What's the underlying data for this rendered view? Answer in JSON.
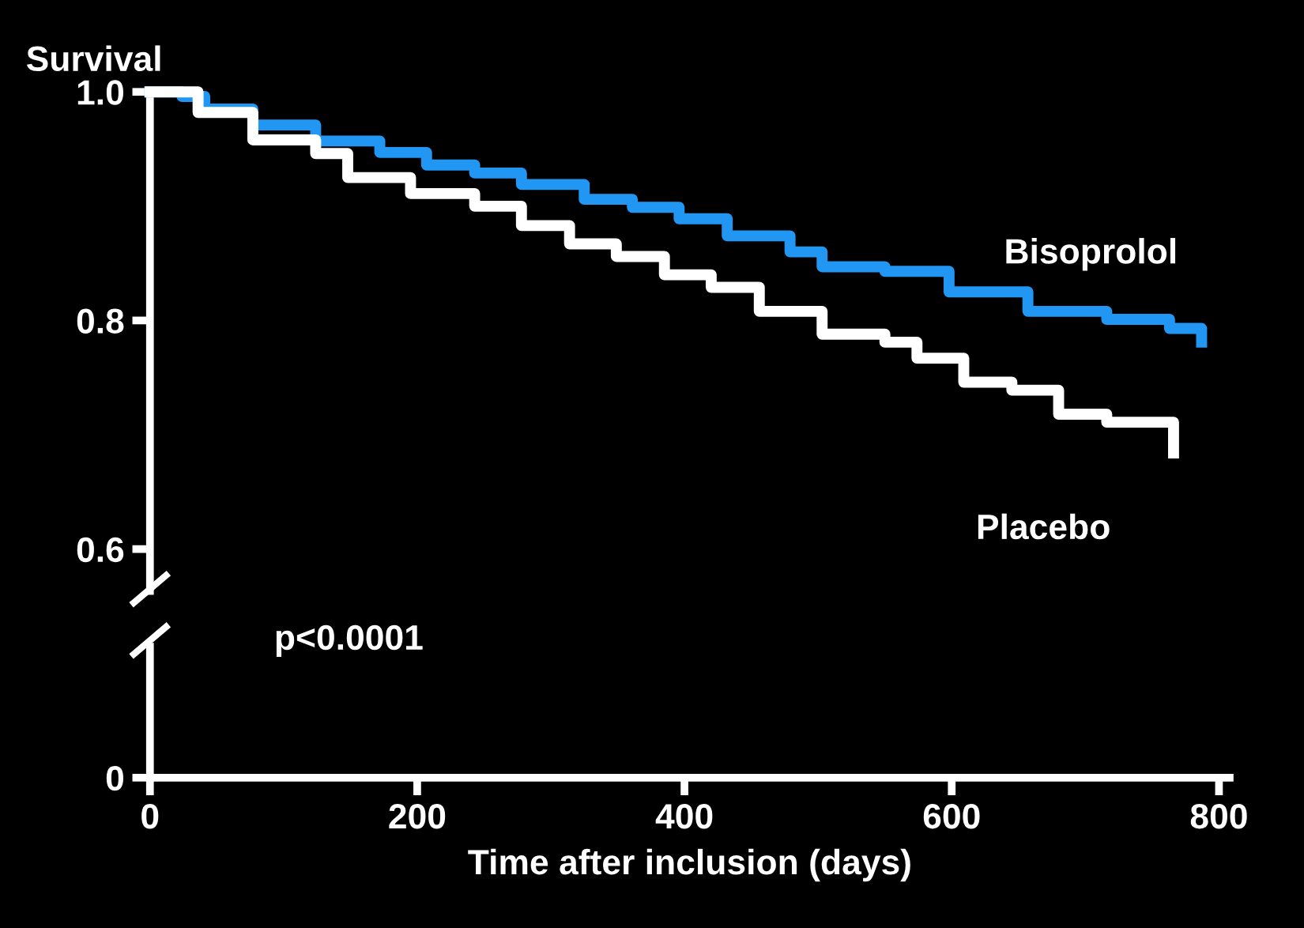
{
  "chart_data": {
    "type": "step",
    "ylabel": "Survival",
    "xlabel": "Time after inclusion (days)",
    "series": [
      {
        "name": "Bisoprolol",
        "color": "#2196f3",
        "x": [
          0,
          24,
          41,
          77,
          124,
          172,
          207,
          243,
          278,
          325,
          361,
          396,
          432,
          479,
          503,
          550,
          598,
          657,
          716,
          763,
          787
        ],
        "values": [
          1.0,
          0.996,
          0.985,
          0.971,
          0.957,
          0.947,
          0.936,
          0.929,
          0.919,
          0.906,
          0.899,
          0.889,
          0.874,
          0.86,
          0.847,
          0.843,
          0.825,
          0.808,
          0.801,
          0.793,
          0.781
        ]
      },
      {
        "name": "Placebo",
        "color": "#ffffff",
        "x": [
          0,
          24,
          36,
          77,
          124,
          148,
          195,
          243,
          278,
          314,
          349,
          385,
          420,
          456,
          503,
          550,
          574,
          609,
          645,
          680,
          716,
          766
        ],
        "values": [
          1.0,
          1.0,
          0.982,
          0.958,
          0.946,
          0.925,
          0.911,
          0.9,
          0.883,
          0.867,
          0.856,
          0.84,
          0.829,
          0.808,
          0.788,
          0.781,
          0.767,
          0.746,
          0.739,
          0.718,
          0.711,
          0.684
        ]
      }
    ],
    "xlim": [
      0,
      808
    ],
    "xticks": [
      0,
      200,
      400,
      600,
      800
    ],
    "ylim": [
      0.4,
      1.0
    ],
    "yticks": [
      {
        "value": 0.4,
        "label": "0"
      },
      {
        "value": 0.6,
        "label": "0.6"
      },
      {
        "value": 0.8,
        "label": "0.8"
      },
      {
        "value": 1.0,
        "label": "1.0"
      }
    ],
    "annotations": [
      {
        "text": "p<0.0001"
      }
    ],
    "grid": false,
    "legend": false,
    "line_style": "solid"
  }
}
